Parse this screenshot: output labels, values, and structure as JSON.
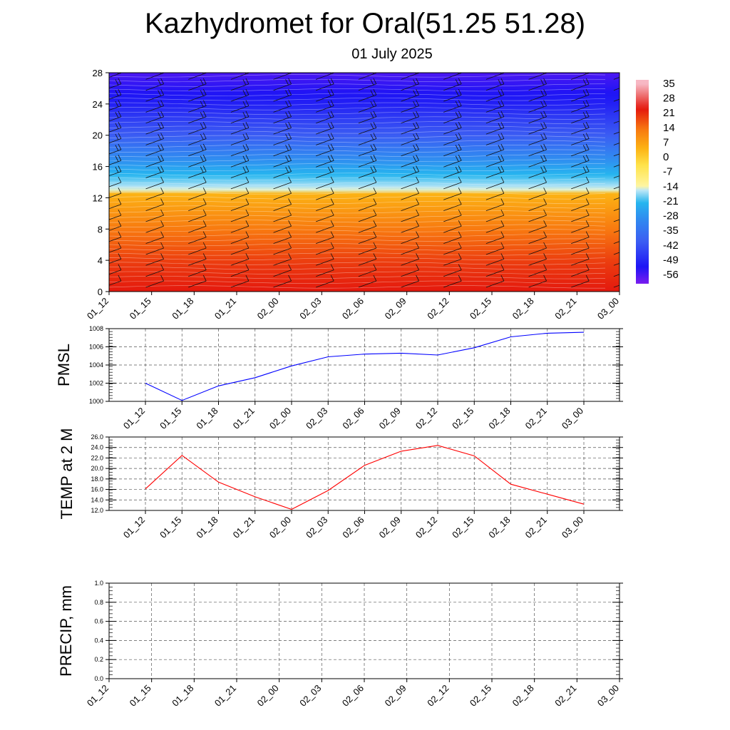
{
  "title": "Kazhydromet for Oral(51.25 51.28)",
  "subtitle": "01 July 2025",
  "chart_data": [
    {
      "type": "heatmap",
      "description_axes": "time vs height, temperature with wind barbs",
      "x_labels": [
        "01_12",
        "01_15",
        "01_18",
        "01_21",
        "02_00",
        "02_03",
        "02_06",
        "02_09",
        "02_12",
        "02_15",
        "02_18",
        "02_21",
        "03_00"
      ],
      "y_ticks": [
        0,
        4,
        8,
        12,
        16,
        20,
        24,
        28
      ],
      "ylim": [
        0,
        28
      ],
      "colorbar_labels": [
        "35",
        "28",
        "21",
        "14",
        "7",
        "0",
        "-7",
        "-14",
        "-21",
        "-28",
        "-35",
        "-42",
        "-49",
        "-56"
      ],
      "colors": {
        "low": "#7a1cf0",
        "cold": "#1e14f5",
        "cool": "#26b6ef",
        "neutral": "#fff5a0",
        "warm": "#fcb314",
        "hot": "#e4180e"
      },
      "temperature_profile": [
        {
          "height": 0,
          "value": 24
        },
        {
          "height": 4,
          "value": 20
        },
        {
          "height": 8,
          "value": 14
        },
        {
          "height": 12.5,
          "value": 5
        },
        {
          "height": 13,
          "value": -14
        },
        {
          "height": 16,
          "value": -25
        },
        {
          "height": 20,
          "value": -40
        },
        {
          "height": 24,
          "value": -50
        },
        {
          "height": 28,
          "value": -56
        }
      ]
    },
    {
      "type": "line",
      "ylabel": "PMSL",
      "x": [
        "01_12",
        "01_15",
        "01_18",
        "01_21",
        "02_00",
        "02_03",
        "02_06",
        "02_09",
        "02_12",
        "02_15",
        "02_18",
        "02_21",
        "03_00"
      ],
      "values": [
        1002.0,
        1000.1,
        1001.7,
        1002.6,
        1003.9,
        1004.9,
        1005.2,
        1005.3,
        1005.1,
        1005.9,
        1007.1,
        1007.5,
        1007.6
      ],
      "y_ticks": [
        "1000",
        "1002",
        "1004",
        "1006",
        "1008"
      ],
      "ylim": [
        1000,
        1008
      ],
      "color": "#0000ff"
    },
    {
      "type": "line",
      "ylabel": "TEMP at 2 M",
      "x": [
        "01_12",
        "01_15",
        "01_18",
        "01_21",
        "02_00",
        "02_03",
        "02_06",
        "02_09",
        "02_12",
        "02_15",
        "02_18",
        "02_21",
        "03_00"
      ],
      "values": [
        16.1,
        22.5,
        17.4,
        14.6,
        12.2,
        15.8,
        20.6,
        23.3,
        24.4,
        22.4,
        17.0,
        15.1,
        13.2
      ],
      "y_ticks": [
        "12.0",
        "14.0",
        "16.0",
        "18.0",
        "20.0",
        "22.0",
        "24.0",
        "26.0"
      ],
      "ylim": [
        12,
        26
      ],
      "color": "#ff0000"
    },
    {
      "type": "line",
      "ylabel": "PRECIP, mm",
      "x": [
        "01_12",
        "01_15",
        "01_18",
        "01_21",
        "02_00",
        "02_03",
        "02_06",
        "02_09",
        "02_12",
        "02_15",
        "02_18",
        "02_21",
        "03_00"
      ],
      "values": [
        0,
        0,
        0,
        0,
        0,
        0,
        0,
        0,
        0,
        0,
        0,
        0,
        0
      ],
      "y_ticks": [
        "0.0",
        "0.2",
        "0.4",
        "0.6",
        "0.8",
        "1.0"
      ],
      "ylim": [
        0,
        1
      ],
      "color": "#006400"
    }
  ]
}
